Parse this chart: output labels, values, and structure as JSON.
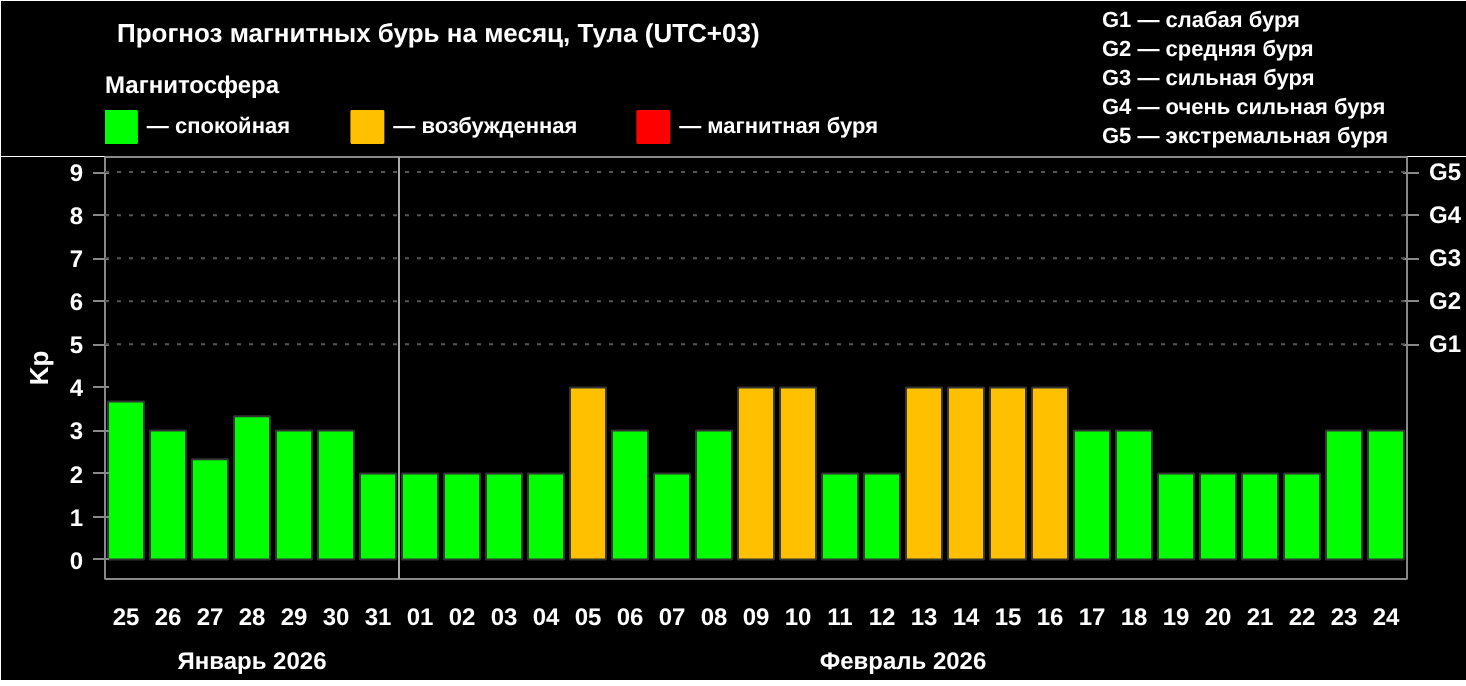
{
  "chart_data": {
    "type": "bar",
    "title": "Прогноз магнитных бурь на месяц, Тула (UTC+03)",
    "ylabel": "Kp",
    "legend_title": "Магнитосфера",
    "legend": "top left",
    "categories": [
      "25",
      "26",
      "27",
      "28",
      "29",
      "30",
      "31",
      "01",
      "02",
      "03",
      "04",
      "05",
      "06",
      "07",
      "08",
      "09",
      "10",
      "11",
      "12",
      "13",
      "14",
      "15",
      "16",
      "17",
      "18",
      "19",
      "20",
      "21",
      "22",
      "23",
      "24"
    ],
    "series": [
      {
        "name": "— спокойная",
        "color": "#00ff00",
        "values": [
          3.67,
          3,
          2.33,
          3.33,
          3,
          3,
          2,
          2,
          2,
          2,
          2,
          null,
          3,
          2,
          3,
          null,
          null,
          2,
          2,
          null,
          null,
          null,
          null,
          3,
          3,
          2,
          2,
          2,
          2,
          3,
          3
        ]
      },
      {
        "name": "— возбужденная",
        "color": "#ffc000",
        "values": [
          null,
          null,
          null,
          null,
          null,
          null,
          null,
          null,
          null,
          null,
          null,
          4,
          null,
          null,
          null,
          4,
          4,
          null,
          null,
          4,
          4,
          4,
          4,
          null,
          null,
          null,
          null,
          null,
          null,
          null,
          null
        ]
      },
      {
        "name": "— магнитная буря",
        "color": "#ff0000",
        "values": [
          null,
          null,
          null,
          null,
          null,
          null,
          null,
          null,
          null,
          null,
          null,
          null,
          null,
          null,
          null,
          null,
          null,
          null,
          null,
          null,
          null,
          null,
          null,
          null,
          null,
          null,
          null,
          null,
          null,
          null,
          null
        ]
      }
    ],
    "ylim": [
      -0.45,
      9.35
    ],
    "yticks": [
      0,
      1,
      2,
      3,
      4,
      5,
      6,
      7,
      8,
      9
    ],
    "ref_lines": [
      {
        "axis": "x",
        "value": "01",
        "color": "#aaaaaa",
        "line_style": "solid"
      },
      {
        "axis": "y",
        "value": 5,
        "label": "G1",
        "color": "#555555",
        "line_style": "dotted"
      },
      {
        "axis": "y",
        "value": 6,
        "label": "G2",
        "color": "#555555",
        "line_style": "dotted"
      },
      {
        "axis": "y",
        "value": 7,
        "label": "G3",
        "color": "#555555",
        "line_style": "dotted"
      },
      {
        "axis": "y",
        "value": 8,
        "label": "G4",
        "color": "#555555",
        "line_style": "dotted"
      },
      {
        "axis": "y",
        "value": 9,
        "label": "G5",
        "color": "#555555",
        "line_style": "dotted"
      }
    ],
    "annotations": [
      "G1 — слабая буря",
      "G2 — средняя буря",
      "G3 — сильная буря",
      "G4 — очень сильная буря",
      "G5 — экстремальная буря",
      "Январь 2026",
      "Февраль 2026"
    ]
  }
}
